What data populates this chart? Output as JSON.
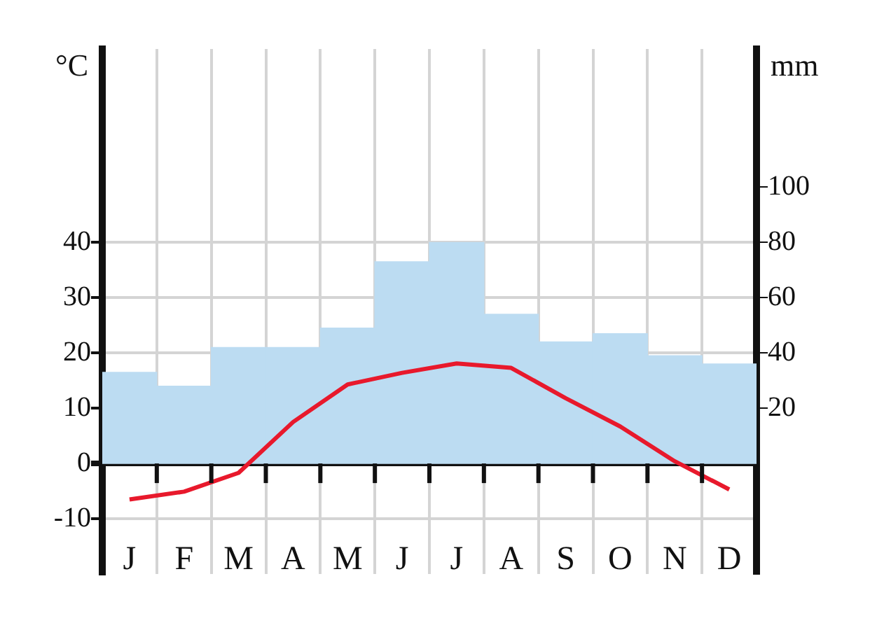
{
  "chart_data": {
    "type": "bar",
    "ylabel": "°C",
    "y2label": "mm",
    "categories": [
      "J",
      "F",
      "M",
      "A",
      "M",
      "J",
      "J",
      "A",
      "S",
      "O",
      "N",
      "D"
    ],
    "series": [
      {
        "axis": "y2",
        "color": "#bcdcf2",
        "values": [
          33,
          28,
          42,
          42,
          49,
          73,
          80,
          54,
          44,
          47,
          39,
          36
        ]
      },
      {
        "type": "line",
        "axis": "y",
        "color": "#e8192c",
        "values": [
          -6.5,
          -5.1,
          -1.7,
          7.5,
          14.3,
          16.4,
          18.1,
          17.3,
          11.8,
          6.7,
          0.4,
          -4.7
        ]
      }
    ],
    "ylim": [
      -20,
      75
    ],
    "yticks": [
      -10,
      0,
      10,
      20,
      30,
      40
    ],
    "y2lim": [
      -40,
      150
    ],
    "y2ticks": [
      20,
      40,
      60,
      80,
      100
    ],
    "grid": true,
    "marker": "none"
  }
}
